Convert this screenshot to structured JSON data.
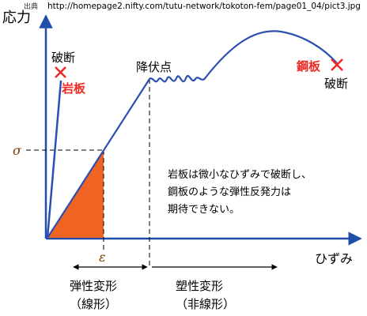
{
  "source": {
    "prefix": "出典",
    "url": "http://homepage2.nifty.com/tutu-network/tokoton-fem/page01_04/pict3.jpg"
  },
  "axes": {
    "y_label": "応力",
    "x_label": "ひずみ",
    "sigma": "σ",
    "epsilon": "ε"
  },
  "rock": {
    "name": "岩板",
    "fracture": "破断"
  },
  "steel": {
    "name": "鋼板",
    "fracture": "破断",
    "yield_point": "降伏点"
  },
  "note": {
    "lines": [
      "岩板は微小なひずみで破断し、",
      "鋼板のような弾性反発力は",
      "期待できない。"
    ]
  },
  "regions": {
    "elastic": {
      "label": "弾性変形",
      "sub": "（線形）"
    },
    "plastic": {
      "label": "塑性変形",
      "sub": "（非線形）"
    }
  },
  "colors": {
    "axis": "#1f4fa8",
    "line": "#2c4fb0",
    "mark_red": "#ee2a24",
    "fill_orange": "#ef6323",
    "greek": "#7a3c00"
  }
}
